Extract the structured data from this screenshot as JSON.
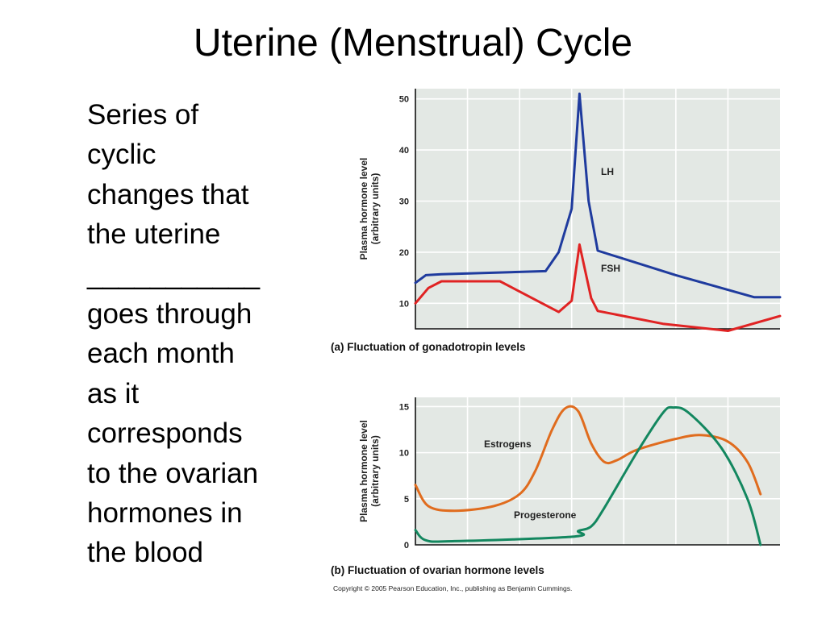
{
  "slide": {
    "title": "Uterine (Menstrual) Cycle",
    "body_lines": [
      "Series of",
      "cyclic",
      "changes that",
      "the uterine",
      "___________",
      "goes through",
      "each month",
      "as it",
      "corresponds",
      "to the ovarian",
      "hormones in",
      "the blood"
    ],
    "copyright": "Copyright © 2005 Pearson Education, Inc., publishing as Benjamin Cummings."
  },
  "chart_data": [
    {
      "type": "line",
      "caption": "(a) Fluctuation of gonadotropin levels",
      "ylabel": [
        "Plasma hormone level",
        "(arbitrary units)"
      ],
      "ylim": [
        5,
        52
      ],
      "yticks": [
        10,
        20,
        30,
        40,
        50
      ],
      "xlim": [
        0,
        28
      ],
      "grid": true,
      "series": [
        {
          "name": "LH",
          "color": "#1f3b9e",
          "points": [
            [
              0,
              14
            ],
            [
              0.8,
              15.5
            ],
            [
              2,
              15.7
            ],
            [
              10,
              16.3
            ],
            [
              11,
              20
            ],
            [
              12,
              28.5
            ],
            [
              12.6,
              51
            ],
            [
              13.3,
              30
            ],
            [
              14,
              20.3
            ],
            [
              20,
              15.5
            ],
            [
              26,
              11.2
            ],
            [
              28,
              11.2
            ]
          ]
        },
        {
          "name": "FSH",
          "color": "#e02323",
          "points": [
            [
              0,
              10
            ],
            [
              1,
              13
            ],
            [
              2,
              14.3
            ],
            [
              6.5,
              14.3
            ],
            [
              11,
              8.3
            ],
            [
              12,
              10.5
            ],
            [
              12.6,
              21.5
            ],
            [
              13.5,
              11
            ],
            [
              14,
              8.5
            ],
            [
              19,
              6
            ],
            [
              24,
              4.6
            ],
            [
              28,
              7.5
            ]
          ]
        }
      ]
    },
    {
      "type": "line",
      "caption": "(b) Fluctuation of ovarian hormone levels",
      "ylabel": [
        "Plasma hormone level",
        "(arbitrary units)"
      ],
      "ylim": [
        0,
        16
      ],
      "yticks": [
        0,
        5,
        10,
        15
      ],
      "xlim": [
        0,
        28
      ],
      "grid": true,
      "series": [
        {
          "name": "Estrogens",
          "color": "#e06c1e",
          "points": [
            [
              0,
              6.5
            ],
            [
              1,
              4.2
            ],
            [
              3,
              3.7
            ],
            [
              6,
              4.2
            ],
            [
              8,
              5.5
            ],
            [
              9.2,
              8
            ],
            [
              10.5,
              12.5
            ],
            [
              11.5,
              14.8
            ],
            [
              12.5,
              14.5
            ],
            [
              13.5,
              11
            ],
            [
              14.5,
              9
            ],
            [
              15.5,
              9.2
            ],
            [
              17,
              10.3
            ],
            [
              20,
              11.5
            ],
            [
              22,
              11.9
            ],
            [
              24,
              11.2
            ],
            [
              25.5,
              9
            ],
            [
              26.5,
              5.5
            ]
          ]
        },
        {
          "name": "Progesterone",
          "color": "#13875f",
          "points": [
            [
              0,
              1.6
            ],
            [
              0.8,
              0.5
            ],
            [
              3,
              0.4
            ],
            [
              12.2,
              0.9
            ],
            [
              12.5,
              1.5
            ],
            [
              13.5,
              2
            ],
            [
              14.5,
              4
            ],
            [
              17,
              10
            ],
            [
              19,
              14.3
            ],
            [
              19.8,
              14.9
            ],
            [
              21,
              14.3
            ],
            [
              23.5,
              10.5
            ],
            [
              25.5,
              5
            ],
            [
              26.5,
              0
            ]
          ]
        }
      ]
    }
  ]
}
